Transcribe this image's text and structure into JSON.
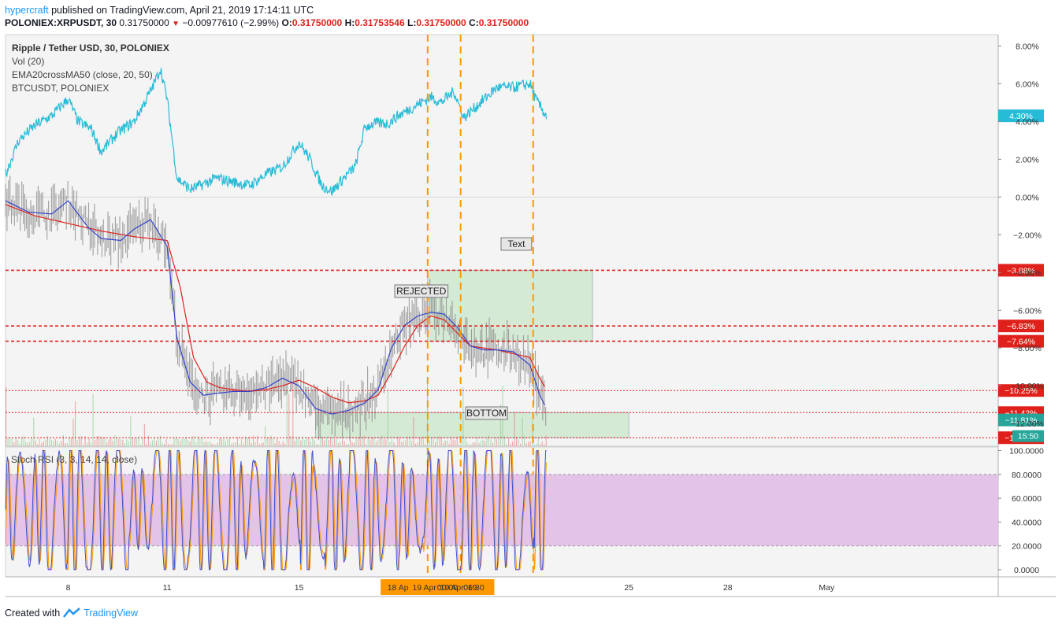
{
  "header": {
    "author": "hypercraft",
    "published": "published on TradingView.com, April 21, 2019 17:14:11 UTC",
    "symbol": "POLONIEX:XRPUSDT, 30",
    "price": "0.31750000",
    "change": "−0.00977610 (−2.99%)",
    "o_label": "O:",
    "o_value": "0.31750000",
    "h_label": "H:",
    "h_value": "0.31753546",
    "l_label": "L:",
    "l_value": "0.31750000",
    "c_label": "C:",
    "c_value": "0.31750000"
  },
  "legend": {
    "main": "Ripple / Tether USD, 30, POLONIEX",
    "vol": "Vol (20)",
    "ema": "EMA20crossMA50 (close, 20, 50)",
    "btc": "BTCUSDT, POLONIEX"
  },
  "stoch_title": "Stoch RSI (3, 3, 14, 14, close)",
  "annotations": {
    "text": "Text",
    "rejected": "REJECTED",
    "bottom": "BOTTOM"
  },
  "footer": {
    "created": "Created with",
    "brand": "TradingView"
  },
  "colors": {
    "xrp_candles": "#8f8f8f",
    "btc_line": "#26bcd7",
    "ema_line": "#3344cc",
    "ma_line": "#e0211b",
    "red_levels": "#e0211b",
    "orange_vlines": "#ff9800",
    "green_zone": "#c8e6c9",
    "stoch_band": "#e1bee7",
    "stoch_k": "#3f51d1",
    "stoch_d": "#ff9800",
    "cyan_badge": "#26bcd7",
    "teal_badge": "#26a69a"
  },
  "chart_data": [
    {
      "type": "line",
      "title": "Ripple / Tether USD, 30, POLONIEX",
      "y_scale": "percent",
      "y_ticks": [
        "8.00%",
        "6.00%",
        "4.00%",
        "2.00%",
        "0.00%",
        "−2.00%",
        "−4.00%",
        "−6.00%",
        "−8.00%",
        "−10.00%",
        "−12.00%"
      ],
      "y_tick_values": [
        8,
        6,
        4,
        2,
        0,
        -2,
        -4,
        -6,
        -8,
        -10,
        -12
      ],
      "x_ticks": [
        "8",
        "11",
        "15",
        "18 Ap",
        "19 Apr '19",
        "00:00",
        "Apr '19",
        "06:30",
        "25",
        "28",
        "May"
      ],
      "x_tick_days": [
        8,
        11,
        15,
        18,
        19,
        19.5,
        20,
        20.3,
        25,
        28,
        31
      ],
      "ylim": [
        -13.2,
        8.6
      ],
      "xlim": [
        6.1,
        36.2
      ],
      "horizontal_levels": [
        {
          "value": -3.88,
          "label": "−3.88%",
          "style": "dashed"
        },
        {
          "value": -6.83,
          "label": "−6.83%",
          "style": "dashed"
        },
        {
          "value": -7.64,
          "label": "−7.64%",
          "style": "dashed"
        },
        {
          "value": -10.25,
          "label": "−10.25%",
          "style": "dotted"
        },
        {
          "value": -11.42,
          "label": "−11.42%",
          "style": "dotted"
        },
        {
          "value": -12.75,
          "label": "−12.75%",
          "style": "dotted"
        }
      ],
      "price_labels": [
        {
          "value": 4.3,
          "label": "4.30%",
          "series": "BTCUSDT, POLONIEX"
        },
        {
          "value": -11.81,
          "label": "−11.81%",
          "series": "Ripple / Tether USD, 30, POLONIEX"
        }
      ],
      "countdown": "15:50",
      "vertical_lines_days": [
        18.9,
        19.9,
        22.1
      ],
      "zones": [
        {
          "name": "REJECTED",
          "x": [
            18.9,
            23.9
          ],
          "y": [
            -3.88,
            -7.64
          ]
        },
        {
          "name": "BOTTOM",
          "x": [
            15.5,
            25.0
          ],
          "y": [
            -11.42,
            -12.75
          ]
        }
      ],
      "series": [
        {
          "name": "BTCUSDT, POLONIEX",
          "x": [
            6.1,
            6.5,
            7.0,
            7.5,
            8.0,
            8.3,
            8.7,
            9.0,
            9.5,
            10.0,
            10.5,
            10.8,
            11.0,
            11.3,
            11.7,
            12.0,
            12.5,
            13.0,
            13.5,
            14.0,
            14.5,
            15.0,
            15.3,
            15.7,
            16.0,
            16.3,
            16.7,
            17.0,
            17.3,
            17.7,
            18.0,
            18.5,
            19.0,
            19.3,
            19.7,
            20.0,
            20.5,
            21.0,
            21.5,
            22.0,
            22.2,
            22.5
          ],
          "y": [
            1.2,
            3.0,
            3.8,
            4.3,
            5.2,
            4.0,
            3.6,
            2.4,
            3.4,
            4.0,
            5.6,
            6.8,
            5.2,
            1.0,
            0.4,
            0.6,
            1.0,
            0.8,
            0.6,
            1.2,
            1.6,
            2.9,
            2.1,
            0.6,
            0.3,
            0.9,
            1.6,
            3.7,
            3.9,
            3.9,
            4.3,
            4.8,
            5.3,
            5.0,
            5.6,
            4.2,
            5.0,
            5.8,
            5.8,
            6.0,
            5.1,
            4.3
          ]
        },
        {
          "name": "EMA20",
          "x": [
            6.1,
            6.8,
            7.5,
            8.0,
            8.6,
            9.0,
            9.6,
            10.0,
            10.5,
            11.0,
            11.3,
            11.7,
            12.1,
            12.5,
            13.0,
            13.5,
            14.0,
            14.5,
            15.0,
            15.5,
            16.0,
            16.5,
            17.0,
            17.4,
            17.8,
            18.2,
            18.6,
            19.0,
            19.4,
            19.8,
            20.2,
            20.6,
            21.0,
            21.5,
            22.0,
            22.3,
            22.5
          ],
          "y": [
            -0.2,
            -0.8,
            -0.9,
            -0.2,
            -1.6,
            -2.2,
            -2.3,
            -1.7,
            -1.2,
            -2.6,
            -7.5,
            -9.8,
            -10.5,
            -10.4,
            -10.3,
            -10.3,
            -10.1,
            -9.6,
            -10.0,
            -11.2,
            -11.5,
            -11.3,
            -10.9,
            -10.2,
            -8.0,
            -6.8,
            -6.3,
            -6.1,
            -6.2,
            -6.9,
            -7.9,
            -8.1,
            -8.1,
            -8.2,
            -8.9,
            -10.5,
            -11.2
          ]
        },
        {
          "name": "MA50",
          "x": [
            6.1,
            7.0,
            8.0,
            9.0,
            10.0,
            11.0,
            11.4,
            11.8,
            12.2,
            12.6,
            13.0,
            13.5,
            14.0,
            14.5,
            15.0,
            15.5,
            16.0,
            16.5,
            17.0,
            17.4,
            17.8,
            18.2,
            18.6,
            19.0,
            19.4,
            19.8,
            20.2,
            20.6,
            21.0,
            21.5,
            22.0,
            22.3,
            22.5
          ],
          "y": [
            -0.4,
            -1.0,
            -1.4,
            -1.8,
            -2.1,
            -2.3,
            -4.8,
            -8.5,
            -9.8,
            -10.1,
            -10.2,
            -10.3,
            -10.2,
            -10.0,
            -9.7,
            -10.1,
            -10.6,
            -10.9,
            -10.8,
            -10.5,
            -9.3,
            -7.9,
            -6.8,
            -6.3,
            -6.5,
            -7.2,
            -7.9,
            -8.0,
            -8.1,
            -8.3,
            -8.5,
            -9.6,
            -10.2
          ]
        }
      ]
    },
    {
      "type": "line",
      "title": "Stoch RSI (3, 3, 14, 14, close)",
      "y_ticks": [
        "100.0000",
        "80.0000",
        "60.0000",
        "40.0000",
        "20.0000",
        "0.0000"
      ],
      "y_tick_values": [
        100,
        80,
        60,
        40,
        20,
        0
      ],
      "ylim": [
        -6,
        103
      ],
      "band": [
        20,
        80
      ],
      "series": [
        {
          "name": "K",
          "oscillation_count": 44
        },
        {
          "name": "D",
          "oscillation_count": 44
        }
      ]
    }
  ]
}
